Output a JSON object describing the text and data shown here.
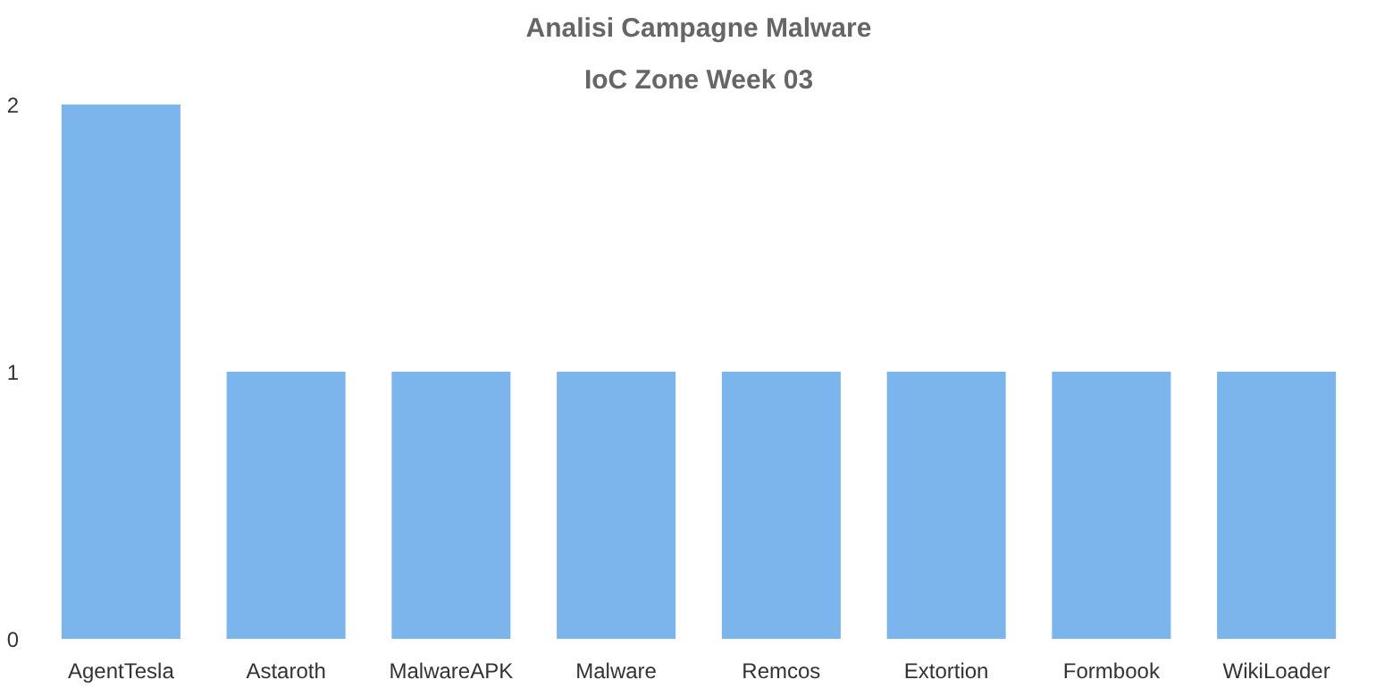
{
  "chart_data": {
    "type": "bar",
    "title": "Analisi Campagne Malware",
    "subtitle": "IoC Zone Week 03",
    "categories": [
      "AgentTesla",
      "Astaroth",
      "MalwareAPK",
      "Malware",
      "Remcos",
      "Extortion",
      "Formbook",
      "WikiLoader"
    ],
    "values": [
      2,
      1,
      1,
      1,
      1,
      1,
      1,
      1
    ],
    "color": "#7cb5ec",
    "ylim": [
      0,
      2
    ],
    "yticks": [
      0,
      1,
      2
    ],
    "grid": false
  }
}
